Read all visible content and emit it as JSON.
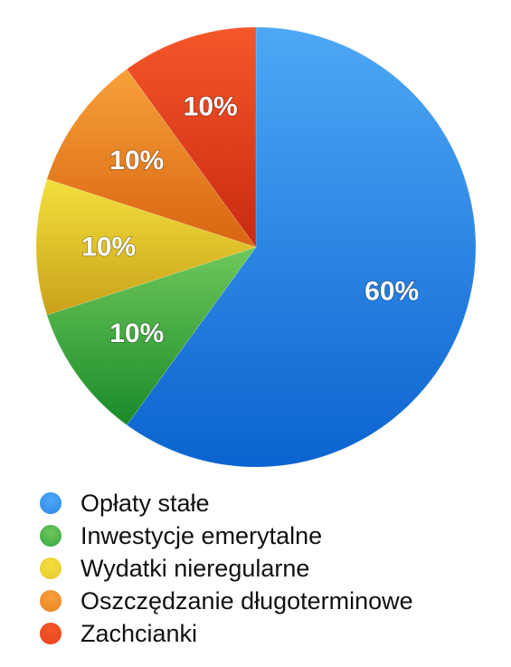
{
  "chart_data": {
    "type": "pie",
    "title": "",
    "categories": [
      "Opłaty stałe",
      "Inwestycje emerytalne",
      "Wydatki nieregularne",
      "Oszczędzanie długoterminowe",
      "Zachcianki"
    ],
    "values": [
      60,
      10,
      10,
      10,
      10
    ],
    "labels": [
      "60%",
      "10%",
      "10%",
      "10%",
      "10%"
    ],
    "colors": [
      [
        "#4ea8f6",
        "#0b63cf"
      ],
      [
        "#6ec85a",
        "#1a8a2a"
      ],
      [
        "#f3e03c",
        "#c9a11a"
      ],
      [
        "#f6a13a",
        "#d96410"
      ],
      [
        "#f5572a",
        "#c92a10"
      ]
    ],
    "legend_colors": [
      "#2d86e8",
      "#35a545",
      "#e7c72c",
      "#ec8123",
      "#e7421a"
    ],
    "start_angle_deg": 0,
    "direction": "clockwise",
    "legend_position": "bottom"
  }
}
